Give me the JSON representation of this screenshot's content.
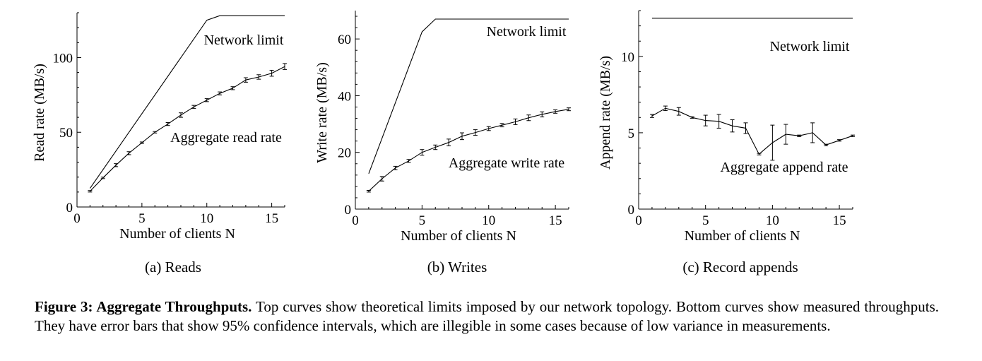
{
  "charts": {
    "chart_data": [
      {
        "type": "line",
        "subcaption": "(a) Reads",
        "xlabel": "Number of clients N",
        "ylabel": "Read rate (MB/s)",
        "xlim": [
          0,
          16
        ],
        "ylim": [
          0,
          130
        ],
        "xticks": [
          0,
          5,
          10,
          15
        ],
        "yticks": [
          0,
          50,
          100
        ],
        "series": [
          {
            "name": "Network limit",
            "x": [
              1,
              10,
              11,
              16
            ],
            "y": [
              12.5,
              125,
              128,
              128
            ]
          },
          {
            "name": "Aggregate read rate",
            "x": [
              1,
              2,
              3,
              4,
              5,
              6,
              7,
              8,
              9,
              10,
              11,
              12,
              13,
              14,
              15,
              16
            ],
            "y": [
              10.5,
              19.5,
              28,
              36,
              43,
              50,
              55.5,
              61.5,
              67,
              71.5,
              76,
              79.5,
              85,
              87,
              89.5,
              94
            ],
            "err": [
              0.5,
              0.5,
              1,
              1,
              0.5,
              0.5,
              1,
              1.5,
              1,
              1,
              1,
              1,
              1.5,
              1.5,
              2,
              2
            ]
          }
        ],
        "labels": [
          {
            "series": "Network limit",
            "text": "Network limit"
          },
          {
            "series": "Aggregate read rate",
            "text": "Aggregate read rate"
          }
        ]
      },
      {
        "type": "line",
        "subcaption": "(b) Writes",
        "xlabel": "Number of clients N",
        "ylabel": "Write rate (MB/s)",
        "xlim": [
          0,
          16
        ],
        "ylim": [
          0,
          70
        ],
        "xticks": [
          0,
          5,
          10,
          15
        ],
        "yticks": [
          0,
          20,
          40,
          60
        ],
        "series": [
          {
            "name": "Network limit",
            "x": [
              1,
              5,
              6,
              16
            ],
            "y": [
              12.5,
              62.5,
              67,
              67
            ]
          },
          {
            "name": "Aggregate write rate",
            "x": [
              1,
              2,
              3,
              4,
              5,
              6,
              7,
              8,
              9,
              10,
              11,
              12,
              13,
              14,
              15,
              16
            ],
            "y": [
              6.3,
              10.7,
              14.5,
              17,
              20,
              21.8,
              23.5,
              25.7,
              27,
              28.4,
              29.6,
              30.8,
              32.2,
              33.4,
              34.4,
              35.2
            ],
            "err": [
              0.3,
              0.8,
              0.6,
              0.5,
              1,
              0.8,
              1.2,
              1.2,
              1,
              0.7,
              0.6,
              1,
              1,
              0.9,
              0.6,
              0.5
            ]
          }
        ],
        "labels": [
          {
            "series": "Network limit",
            "text": "Network limit"
          },
          {
            "series": "Aggregate write rate",
            "text": "Aggregate write rate"
          }
        ]
      },
      {
        "type": "line",
        "subcaption": "(c) Record appends",
        "xlabel": "Number of clients N",
        "ylabel": "Append rate (MB/s)",
        "xlim": [
          0,
          16
        ],
        "ylim": [
          0,
          13
        ],
        "xticks": [
          0,
          5,
          10,
          15
        ],
        "yticks": [
          0,
          5,
          10
        ],
        "series": [
          {
            "name": "Network limit",
            "x": [
              1,
              16
            ],
            "y": [
              12.5,
              12.5
            ]
          },
          {
            "name": "Aggregate append rate",
            "x": [
              1,
              2,
              3,
              4,
              5,
              6,
              7,
              8,
              9,
              10,
              11,
              12,
              13,
              14,
              15,
              16
            ],
            "y": [
              6.1,
              6.6,
              6.4,
              6.0,
              5.8,
              5.75,
              5.45,
              5.3,
              3.6,
              4.35,
              4.9,
              4.8,
              5.0,
              4.2,
              4.5,
              4.8
            ],
            "err": [
              0.1,
              0.15,
              0.25,
              0.05,
              0.35,
              0.45,
              0.4,
              0.35,
              0.05,
              1.15,
              0.65,
              0.05,
              0.65,
              0.05,
              0.05,
              0.05
            ]
          }
        ],
        "labels": [
          {
            "series": "Network limit",
            "text": "Network limit"
          },
          {
            "series": "Aggregate append rate",
            "text": "Aggregate append rate"
          }
        ]
      }
    ]
  },
  "caption": {
    "bold": "Figure 3: Aggregate Throughputs.",
    "text": " Top curves show theoretical limits imposed by our network topology. Bottom curves show measured throughputs. They have error bars that show 95% confidence intervals, which are illegible in some cases because of low variance in measurements."
  }
}
